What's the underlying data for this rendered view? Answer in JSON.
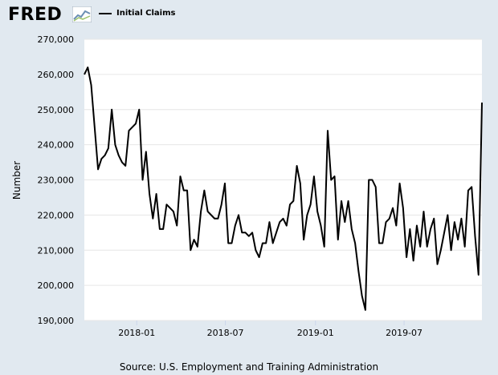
{
  "header": {
    "logo_text": "FRED",
    "logo_icon": "fred-graph-icon",
    "accent_color": "#6b8fb3"
  },
  "source_note": "Source: U.S. Employment and Training Administration",
  "chart_data": {
    "type": "line",
    "title": "",
    "xlabel": "",
    "ylabel": "Number",
    "ylim": [
      190000,
      270000
    ],
    "y_ticks": [
      190000,
      200000,
      210000,
      220000,
      230000,
      240000,
      250000,
      260000,
      270000
    ],
    "y_tick_labels": [
      "190,000",
      "200,000",
      "210,000",
      "220,000",
      "230,000",
      "240,000",
      "250,000",
      "260,000",
      "270,000"
    ],
    "x_ticks": [
      "2018-01",
      "2018-07",
      "2019-01",
      "2019-07"
    ],
    "grid": true,
    "legend": "top-left",
    "line_color": "#000000",
    "series": [
      {
        "name": "Initial Claims",
        "start_date": "2017-09-16",
        "interval_days": 7,
        "values": [
          260000,
          262000,
          257000,
          245000,
          233000,
          236000,
          237000,
          239000,
          250000,
          240000,
          237000,
          235000,
          234000,
          244000,
          245000,
          246000,
          250000,
          230000,
          238000,
          226000,
          219000,
          226000,
          216000,
          216000,
          223000,
          222000,
          221000,
          217000,
          231000,
          227000,
          227000,
          210000,
          213000,
          211000,
          221000,
          227000,
          221000,
          220000,
          219000,
          219000,
          223000,
          229000,
          212000,
          212000,
          217000,
          220000,
          215000,
          215000,
          214000,
          215000,
          210000,
          208000,
          212000,
          212000,
          218000,
          212000,
          215000,
          218000,
          219000,
          217000,
          223000,
          224000,
          234000,
          229000,
          213000,
          220000,
          223000,
          231000,
          221000,
          217000,
          211000,
          244000,
          230000,
          231000,
          213000,
          224000,
          218000,
          224000,
          216000,
          212000,
          204000,
          197000,
          193000,
          230000,
          230000,
          228000,
          212000,
          212000,
          218000,
          219000,
          222000,
          217000,
          229000,
          222000,
          208000,
          216000,
          207000,
          217000,
          211000,
          221000,
          211000,
          216000,
          219000,
          206000,
          210000,
          215000,
          220000,
          210000,
          218000,
          213000,
          219000,
          211000,
          227000,
          228000,
          214000,
          203000,
          252000
        ]
      }
    ]
  }
}
